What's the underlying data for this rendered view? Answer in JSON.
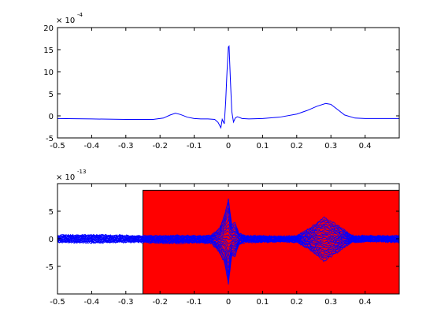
{
  "chart_data": [
    {
      "type": "line",
      "title": "",
      "xlabel": "",
      "ylabel": "",
      "xlim": [
        -0.5,
        0.5
      ],
      "ylim": [
        -5,
        20
      ],
      "xticks": [
        "-0.5",
        "-0.4",
        "-0.3",
        "-0.2",
        "-0.1",
        "0",
        "0.1",
        "0.2",
        "0.3",
        "0.4"
      ],
      "xtick_values": [
        -0.5,
        -0.4,
        -0.3,
        -0.2,
        -0.1,
        0,
        0.1,
        0.2,
        0.3,
        0.4
      ],
      "yticks": [
        "-5",
        "0",
        "5",
        "10",
        "15",
        "20"
      ],
      "ytick_values": [
        -5,
        0,
        5,
        10,
        15,
        20
      ],
      "exponent_base": "× 10",
      "exponent_power": "-4",
      "grid": false,
      "series": [
        {
          "color": "#0000ff",
          "x": [
            -0.5,
            -0.4,
            -0.3,
            -0.22,
            -0.19,
            -0.17,
            -0.155,
            -0.14,
            -0.12,
            -0.1,
            -0.08,
            -0.06,
            -0.04,
            -0.03,
            -0.022,
            -0.018,
            -0.012,
            -0.008,
            -0.004,
            0.0,
            0.002,
            0.006,
            0.01,
            0.015,
            0.02,
            0.026,
            0.03,
            0.04,
            0.06,
            0.1,
            0.15,
            0.2,
            0.23,
            0.26,
            0.285,
            0.3,
            0.32,
            0.34,
            0.37,
            0.4,
            0.45,
            0.5
          ],
          "y": [
            -0.6,
            -0.7,
            -0.8,
            -0.8,
            -0.5,
            0.2,
            0.6,
            0.3,
            -0.3,
            -0.6,
            -0.7,
            -0.7,
            -0.8,
            -1.5,
            -2.7,
            -0.8,
            -1.8,
            3.0,
            10.0,
            15.6,
            15.8,
            8.0,
            1.0,
            -1.4,
            -0.5,
            -0.2,
            -0.3,
            -0.6,
            -0.7,
            -0.6,
            -0.3,
            0.4,
            1.2,
            2.2,
            2.8,
            2.6,
            1.4,
            0.2,
            -0.5,
            -0.6,
            -0.6,
            -0.6
          ]
        }
      ]
    },
    {
      "type": "line",
      "title": "",
      "xlabel": "",
      "ylabel": "",
      "xlim": [
        -0.5,
        0.5
      ],
      "ylim": [
        -10,
        10
      ],
      "xticks": [
        "-0.5",
        "-0.4",
        "-0.3",
        "-0.2",
        "-0.1",
        "0",
        "0.1",
        "0.2",
        "0.3",
        "0.4"
      ],
      "xtick_values": [
        -0.5,
        -0.4,
        -0.3,
        -0.2,
        -0.1,
        0,
        0.1,
        0.2,
        0.3,
        0.4
      ],
      "yticks": [
        "-5",
        "0",
        "5"
      ],
      "ytick_values": [
        -5,
        0,
        5
      ],
      "exponent_base": "× 10",
      "exponent_power": "-13",
      "grid": false,
      "highlight_region": {
        "x": [
          -0.25,
          0.5
        ],
        "y": [
          -10,
          8.8
        ],
        "color": "#ff0000"
      },
      "series_color": "#0000ff",
      "envelope": {
        "x": [
          -0.5,
          -0.4,
          -0.3,
          -0.25,
          -0.2,
          -0.15,
          -0.1,
          -0.05,
          -0.025,
          -0.01,
          0.0,
          0.01,
          0.02,
          0.03,
          0.05,
          0.1,
          0.15,
          0.2,
          0.24,
          0.28,
          0.32,
          0.36,
          0.4,
          0.45,
          0.5
        ],
        "upper": [
          0.6,
          0.7,
          0.6,
          0.5,
          0.5,
          0.6,
          0.5,
          0.6,
          2.0,
          4.5,
          7.2,
          2.5,
          3.0,
          1.0,
          0.5,
          0.5,
          0.4,
          0.5,
          2.0,
          3.9,
          2.4,
          0.6,
          0.5,
          0.5,
          0.5
        ],
        "lower": [
          -0.6,
          -0.7,
          -0.6,
          -0.6,
          -0.7,
          -0.8,
          -0.7,
          -0.8,
          -2.5,
          -4.5,
          -8.2,
          -3.0,
          -3.2,
          -1.0,
          -0.6,
          -0.6,
          -0.5,
          -0.6,
          -2.0,
          -4.0,
          -2.4,
          -0.6,
          -0.5,
          -0.5,
          -0.6
        ]
      }
    }
  ]
}
